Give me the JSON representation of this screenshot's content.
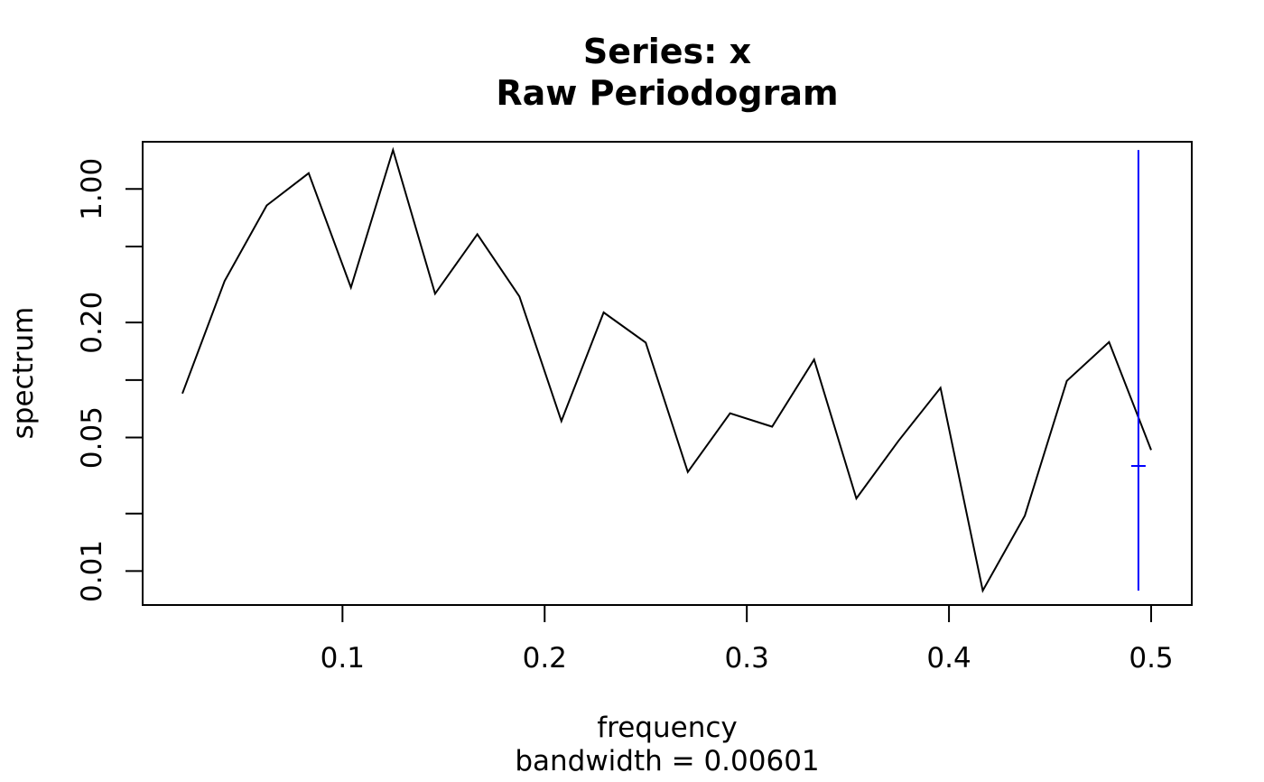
{
  "chart_data": {
    "type": "line",
    "title": "Series: x",
    "subtitle": "Raw Periodogram",
    "xlabel": "frequency",
    "xlabel_sub": "bandwidth = 0.00601",
    "ylabel": "spectrum",
    "y_scale": "log",
    "xlim": [
      0.0208,
      0.5
    ],
    "ylim": [
      0.00826,
      1.437
    ],
    "x_ticks": [
      0.1,
      0.2,
      0.3,
      0.4,
      0.5
    ],
    "x_tick_labels": [
      "0.1",
      "0.2",
      "0.3",
      "0.4",
      "0.5"
    ],
    "y_ticks": [
      0.01,
      0.02,
      0.05,
      0.1,
      0.2,
      0.5,
      1.0
    ],
    "y_tick_labels": [
      "0.01",
      "",
      "0.05",
      "",
      "0.20",
      "",
      "1.00"
    ],
    "grid": false,
    "line_color": "#000000",
    "series": [
      {
        "x": [
          0.0208,
          0.0417,
          0.0625,
          0.0833,
          0.1042,
          0.125,
          0.1458,
          0.1667,
          0.1875,
          0.2083,
          0.2292,
          0.25,
          0.2708,
          0.2917,
          0.3125,
          0.3333,
          0.3542,
          0.375,
          0.3958,
          0.4167,
          0.4375,
          0.4583,
          0.4792,
          0.5
        ],
        "values": [
          0.085,
          0.33,
          0.82,
          1.21,
          0.305,
          1.6,
          0.283,
          0.58,
          0.274,
          0.061,
          0.226,
          0.157,
          0.033,
          0.067,
          0.057,
          0.128,
          0.024,
          0.048,
          0.091,
          0.0079,
          0.0195,
          0.099,
          0.158,
          0.043
        ]
      }
    ],
    "ci_bar": {
      "color": "#0000ff",
      "x": 0.4937,
      "center": 0.0355,
      "lower": 0.0079,
      "upper": 1.6
    }
  }
}
